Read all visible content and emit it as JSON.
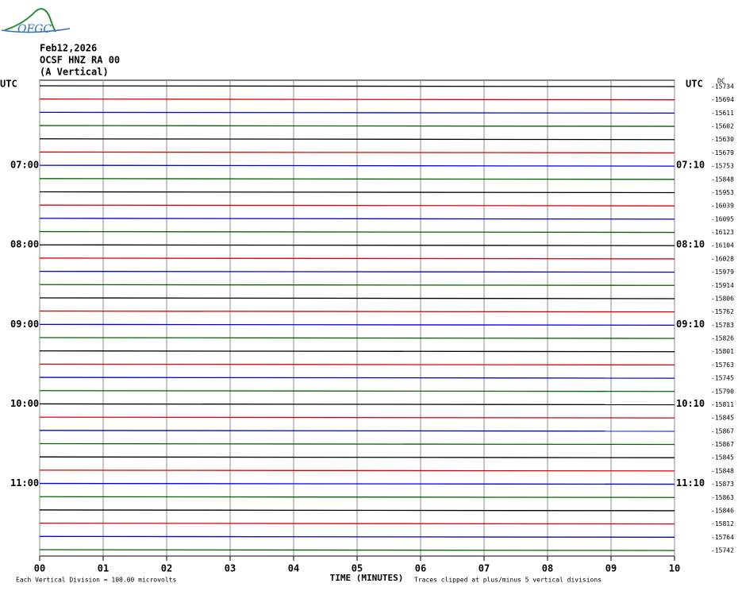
{
  "logo": "OFGC",
  "chart_data": {
    "type": "helicorder",
    "title": "Feb12,2026",
    "subtitle": "OCSF HNZ RA 00",
    "component": "(A Vertical)",
    "left_header": "UTC",
    "right_header": "UTC",
    "level_header": "DC",
    "xlabel": "TIME (MINUTES)",
    "scale_note": "Each Vertical Division =  100.00 microvolts",
    "clip_note": "Traces clipped at plus/minus 5 vertical divisions",
    "xlim": [
      0,
      10
    ],
    "xticks": [
      {
        "value": 0,
        "label": "00"
      },
      {
        "value": 1,
        "label": "01"
      },
      {
        "value": 2,
        "label": "02"
      },
      {
        "value": 3,
        "label": "03"
      },
      {
        "value": 4,
        "label": "04"
      },
      {
        "value": 5,
        "label": "05"
      },
      {
        "value": 6,
        "label": "06"
      },
      {
        "value": 7,
        "label": "07"
      },
      {
        "value": 8,
        "label": "08"
      },
      {
        "value": 9,
        "label": "09"
      },
      {
        "value": 10,
        "label": "10"
      }
    ],
    "grid": true,
    "colors": [
      "#000000",
      "#e00000",
      "#0000e0",
      "#006400"
    ],
    "left_labels": [
      null,
      null,
      null,
      null,
      null,
      null,
      "07:00",
      null,
      null,
      null,
      null,
      null,
      "08:00",
      null,
      null,
      null,
      null,
      null,
      "09:00",
      null,
      null,
      null,
      null,
      null,
      "10:00",
      null,
      null,
      null,
      null,
      null,
      "11:00",
      null,
      null,
      null,
      null,
      null
    ],
    "right_labels": [
      null,
      null,
      null,
      null,
      null,
      null,
      "07:10",
      null,
      null,
      null,
      null,
      null,
      "08:10",
      null,
      null,
      null,
      null,
      null,
      "09:10",
      null,
      null,
      null,
      null,
      null,
      "10:10",
      null,
      null,
      null,
      null,
      null,
      "11:10",
      null,
      null,
      null,
      null,
      null
    ],
    "levels": [
      -15734,
      -15694,
      -15611,
      -15602,
      -15630,
      -15679,
      -15753,
      -15848,
      -15953,
      -16039,
      -16095,
      -16123,
      -16104,
      -16028,
      -15979,
      -15914,
      -15806,
      -15762,
      -15783,
      -15826,
      -15801,
      -15763,
      -15745,
      -15790,
      -15811,
      -15845,
      -15867,
      -15867,
      -15845,
      -15848,
      -15873,
      -15863,
      -15846,
      -15812,
      -15764,
      -15742
    ]
  }
}
